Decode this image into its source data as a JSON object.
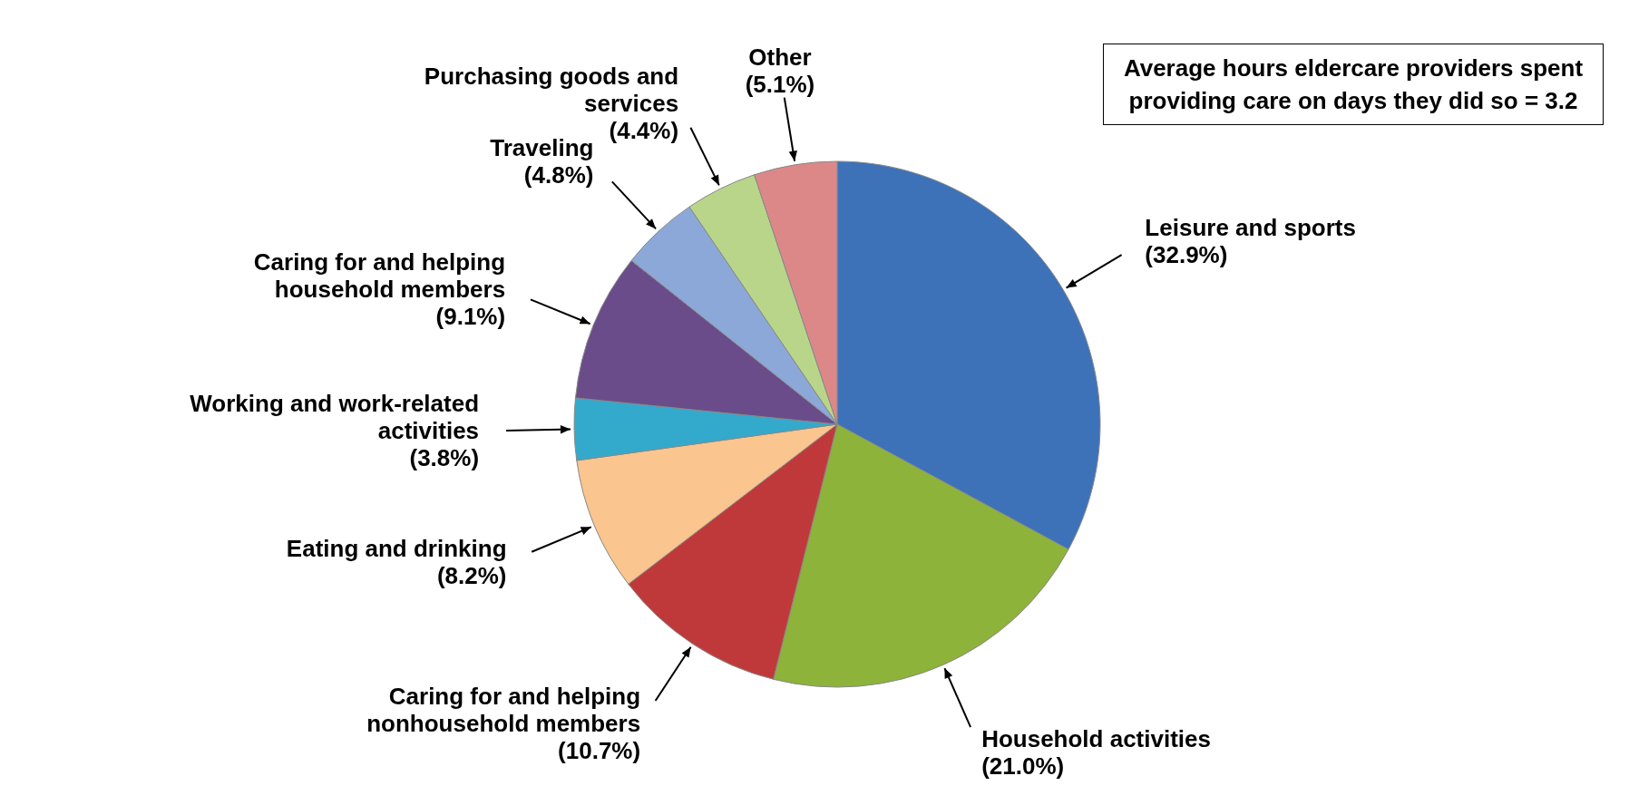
{
  "chart_data": {
    "type": "pie",
    "categories": [
      "Leisure and sports",
      "Household activities",
      "Caring for and helping nonhousehold members",
      "Eating and drinking",
      "Working and work-related activities",
      "Caring for  and helping household members",
      "Traveling",
      "Purchasing goods and services",
      "Other"
    ],
    "values": [
      32.9,
      21.0,
      10.7,
      8.2,
      3.8,
      9.1,
      4.8,
      4.4,
      5.1
    ],
    "value_labels": [
      "(32.9%)",
      "(21.0%)",
      "(10.7%)",
      "(8.2%)",
      "(3.8%)",
      "(9.1%)",
      "(4.8%)",
      "(4.4%)",
      "(5.1%)"
    ],
    "colors": [
      "#3d72b8",
      "#8db33a",
      "#c0393a",
      "#fac58e",
      "#33aacc",
      "#6b4c8a",
      "#8ba8d8",
      "#b8d58a",
      "#dd8888"
    ],
    "annotations": [
      "Average hours eldercare providers spent providing care on days they did so = 3.2"
    ]
  }
}
